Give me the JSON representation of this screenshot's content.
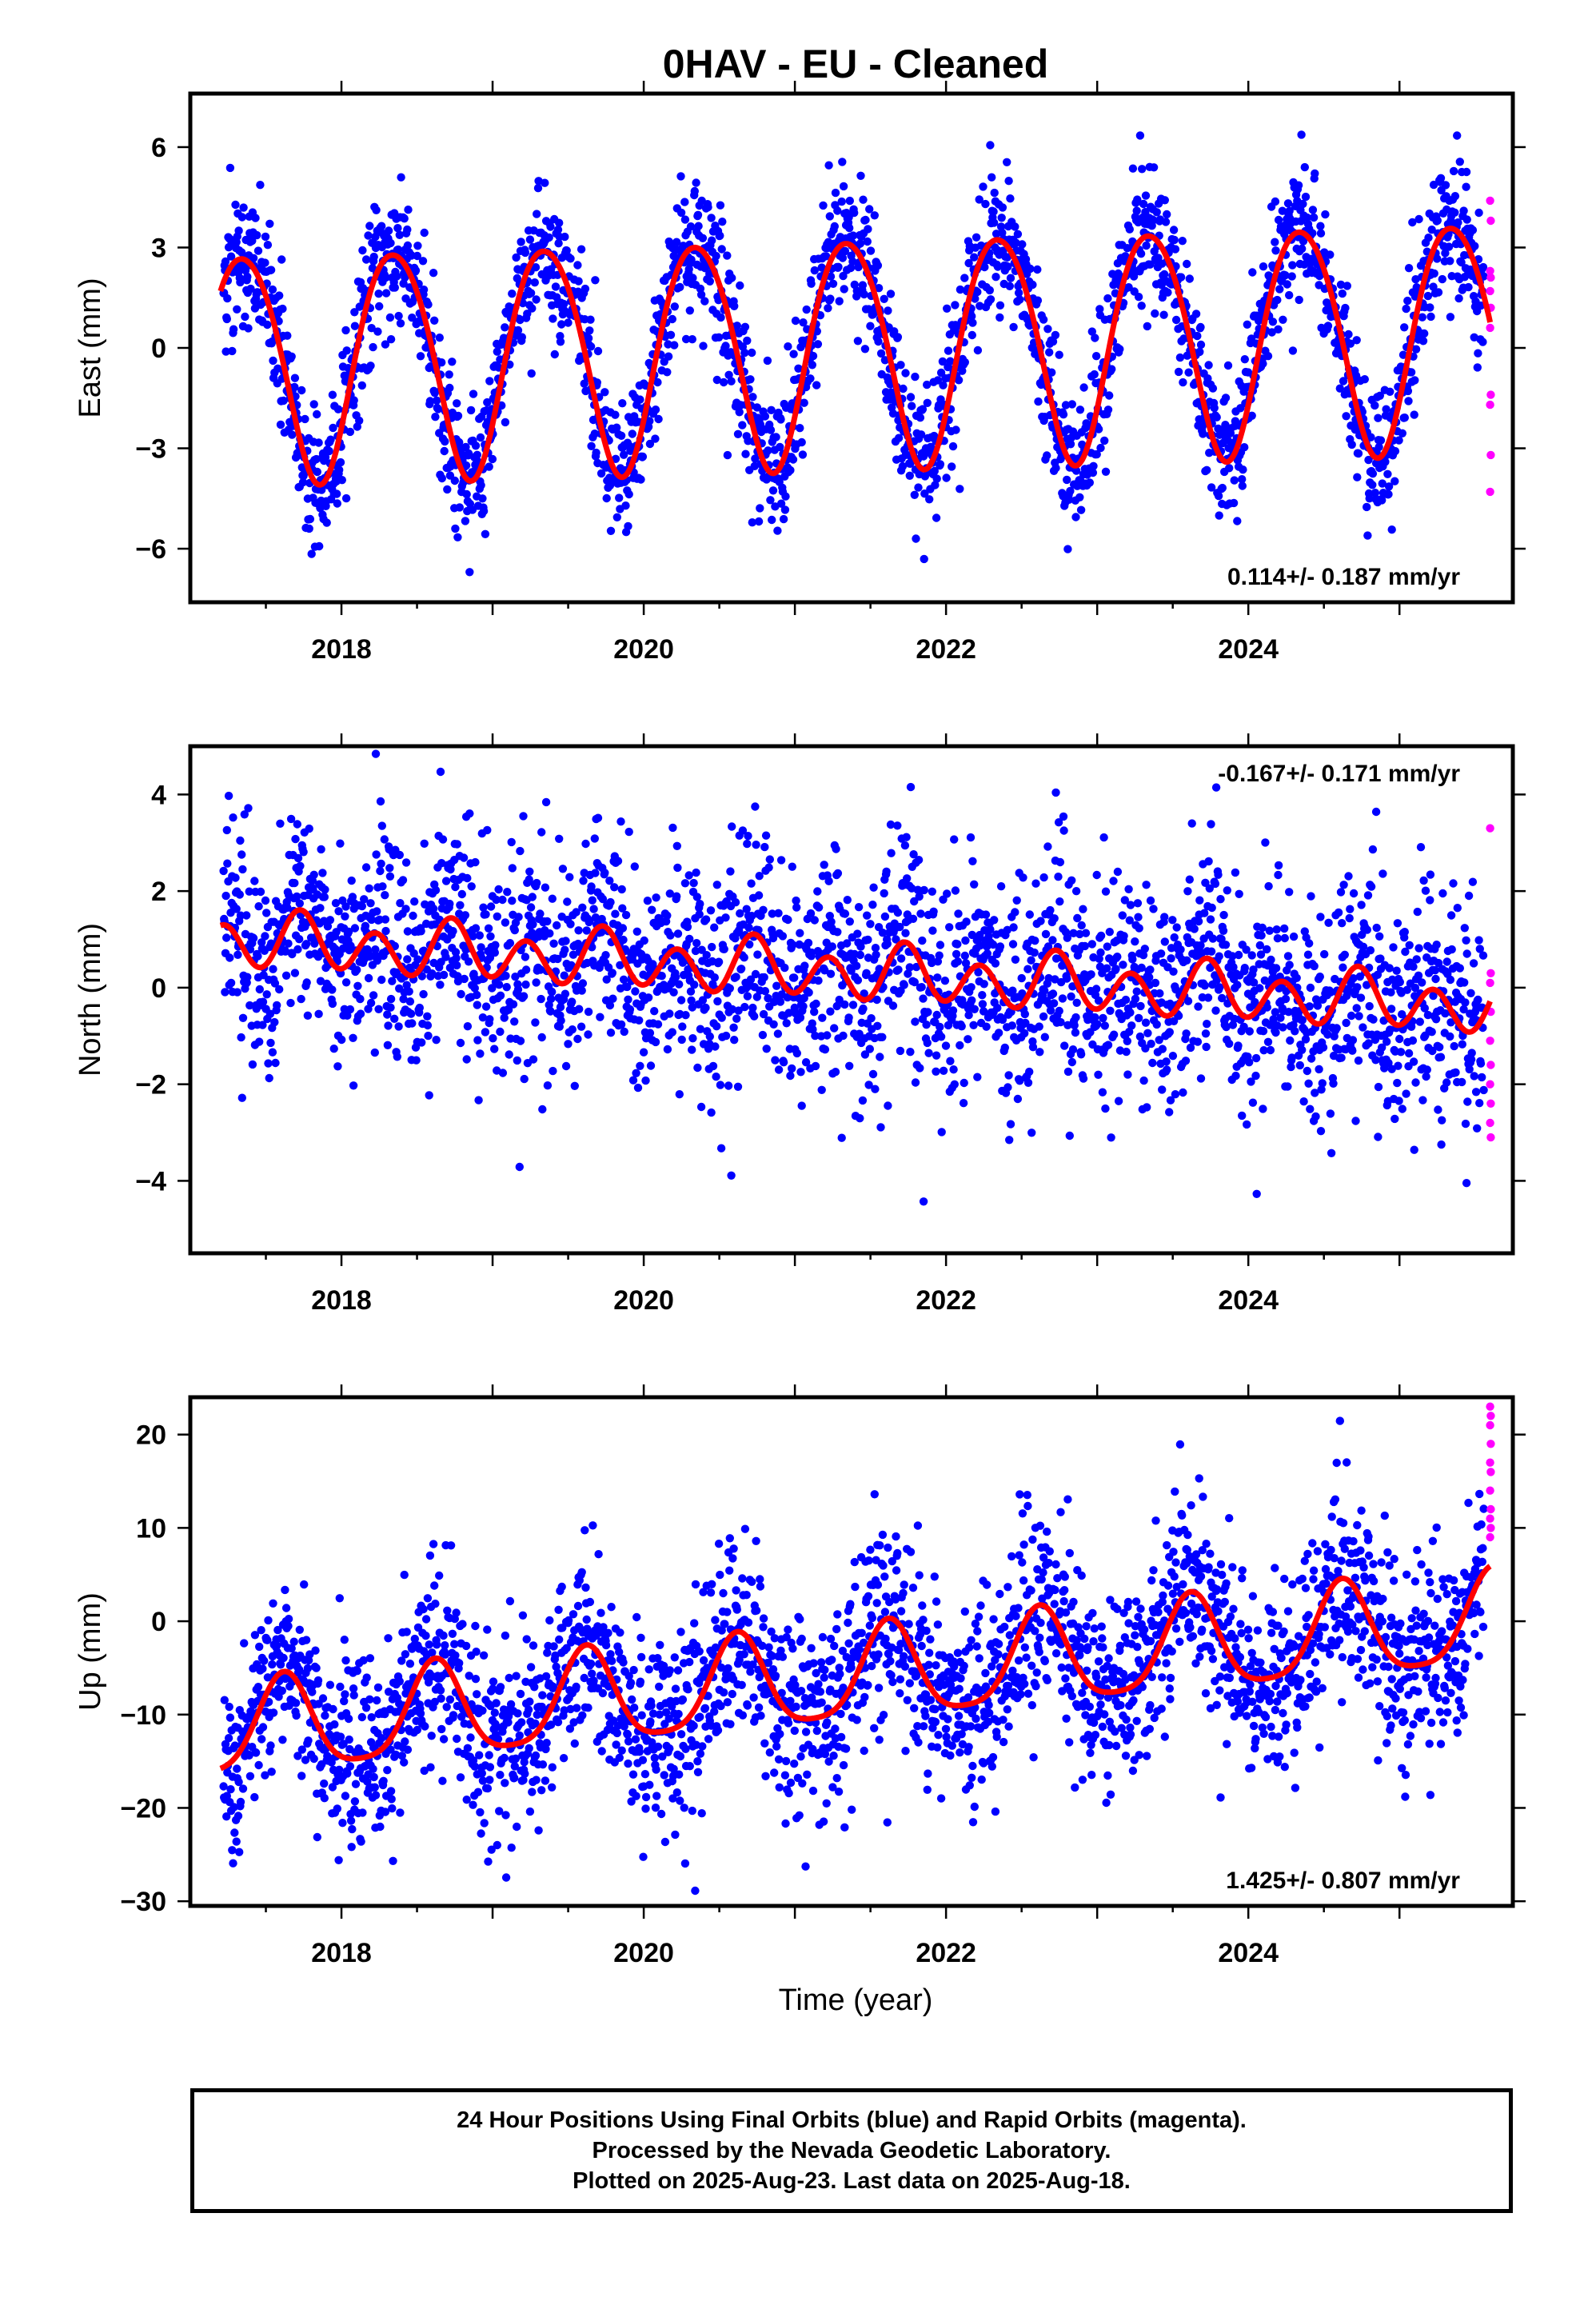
{
  "chart_data": {
    "type": "scatter",
    "title": "0HAV  - EU - Cleaned",
    "x_range": [
      2017.0,
      2025.75
    ],
    "x_ticks": [
      2018,
      2020,
      2022,
      2024
    ],
    "xlabel": "Time (year)",
    "colors": {
      "final": "#0000ff",
      "rapid": "#ff00ff",
      "fit": "#ff0000"
    },
    "series_names": [
      "Final Orbits (blue)",
      "Rapid Orbits (magenta)"
    ],
    "panels": [
      {
        "id": "east",
        "ylabel": "East (mm)",
        "ylim": [
          -7.6,
          7.6
        ],
        "yticks": [
          6,
          3,
          0,
          -3,
          -6
        ],
        "ytick_labels": [
          "6",
          "3",
          "0",
          "−3",
          "−6"
        ],
        "rate": "0.114+/- 0.187 mm/yr",
        "rate_pos": "bottom-right",
        "fit": {
          "offset": 0.0,
          "trend": 0.114,
          "annual": 3.4,
          "annual_phase": 0.1,
          "semi": 0.3,
          "semi_phase": 0.0,
          "t0": 2017.2,
          "t1": 2025.6
        },
        "noise": 1.0,
        "rapid_values": [
          4.4,
          3.8,
          2.3,
          2.1,
          1.7,
          1.2,
          0.6,
          -1.4,
          -1.7,
          -3.2,
          -4.3
        ]
      },
      {
        "id": "north",
        "ylabel": "North (mm)",
        "ylim": [
          -5.5,
          5.0
        ],
        "yticks": [
          4,
          2,
          0,
          -2,
          -4
        ],
        "ytick_labels": [
          "4",
          "2",
          "0",
          "−2",
          "−4"
        ],
        "rate": "-0.167+/- 0.171 mm/yr",
        "rate_pos": "top-right",
        "fit": {
          "offset": 0.3,
          "trend": -0.167,
          "annual": 0.2,
          "annual_phase": 0.5,
          "semi": 0.5,
          "semi_phase": 0.1,
          "t0": 2017.2,
          "t1": 2025.6
        },
        "noise": 1.1,
        "rapid_values": [
          3.3,
          0.3,
          0.1,
          -0.5,
          -1.1,
          -1.6,
          -2.0,
          -2.4,
          -2.8,
          -3.1
        ]
      },
      {
        "id": "up",
        "ylabel": "Up (mm)",
        "ylim": [
          -30.5,
          24.0
        ],
        "yticks": [
          20,
          10,
          0,
          -10,
          -20,
          -30
        ],
        "ytick_labels": [
          "20",
          "10",
          "0",
          "−10",
          "−20",
          "−30"
        ],
        "rate": "1.425+/- 0.807 mm/yr",
        "rate_pos": "bottom-right",
        "fit": {
          "offset": -6.0,
          "trend": 1.425,
          "annual": 5.0,
          "annual_phase": 0.37,
          "semi": 1.0,
          "semi_phase": 0.0,
          "t0": 2017.2,
          "t1": 2025.6
        },
        "noise": 5.0,
        "rapid_values": [
          23.0,
          22.0,
          21.0,
          19.0,
          17.0,
          16.0,
          14.0,
          12.0,
          11.0,
          10.0,
          9.0
        ]
      }
    ]
  },
  "footer": {
    "line1": "24 Hour Positions Using Final Orbits (blue) and Rapid Orbits (magenta).",
    "line2": "Processed by the Nevada Geodetic Laboratory.",
    "line3": "Plotted on 2025-Aug-23. Last data on 2025-Aug-18."
  }
}
